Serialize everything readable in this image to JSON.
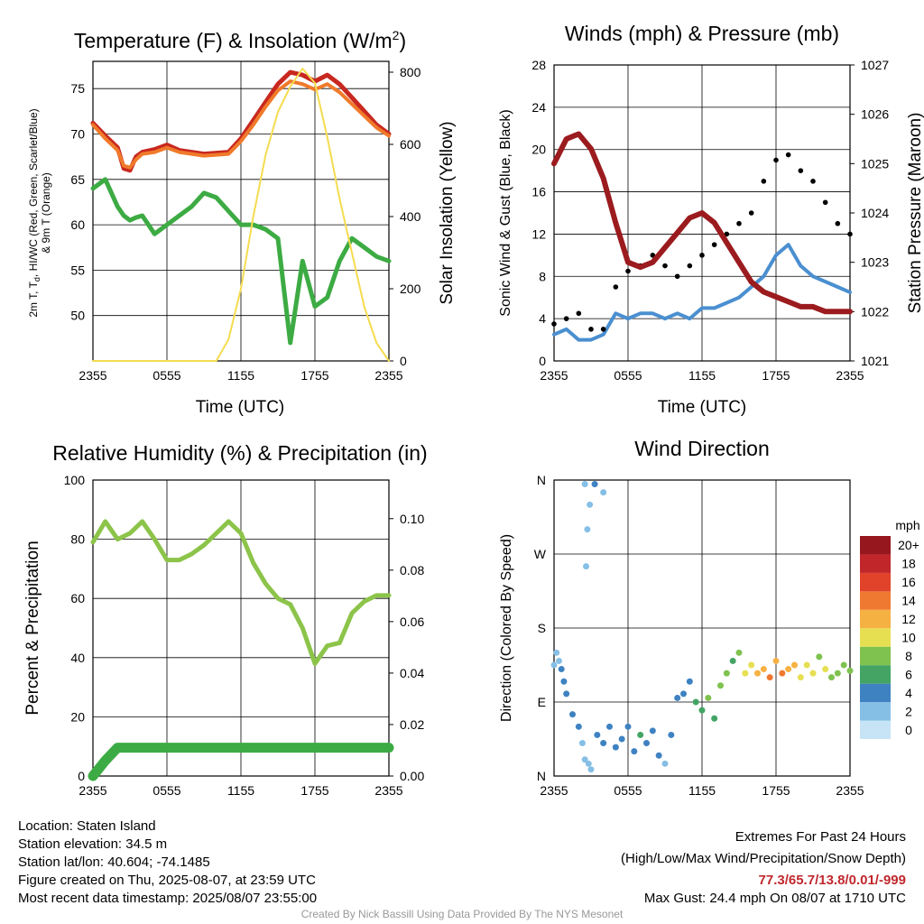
{
  "chart_data": [
    {
      "type": "line",
      "title": "Temperature (F) & Insolation (W/m2)",
      "ylabel": "2m T, Td, HI/WC (Red, Green, Scarlet/Blue) & 9m T (Orange)",
      "y2label": "Solar Insolation (Yellow)",
      "xlabel": "Time (UTC)",
      "x_ticks": [
        "2355",
        "0555",
        "1155",
        "1755",
        "2355"
      ],
      "ylim": [
        45,
        78
      ],
      "y_ticks": [
        50,
        55,
        60,
        65,
        70,
        75
      ],
      "y2lim": [
        0,
        830
      ],
      "y2_ticks": [
        0,
        200,
        400,
        600,
        800
      ],
      "x_hours": [
        0,
        1,
        2,
        2.5,
        3,
        3.5,
        4,
        5,
        6,
        7,
        8,
        9,
        10,
        11,
        12,
        13,
        14,
        15,
        16,
        17,
        18,
        19,
        20,
        21,
        22,
        23,
        24
      ],
      "series": [
        {
          "name": "2m T",
          "color": "#c8281f",
          "axis": "left",
          "values": [
            71.2,
            69.8,
            68.5,
            66.2,
            66.0,
            67.5,
            68.0,
            68.3,
            68.8,
            68.2,
            68.0,
            67.8,
            67.9,
            68.0,
            69.5,
            71.5,
            73.5,
            75.5,
            76.8,
            76.5,
            75.8,
            76.5,
            75.5,
            74.0,
            72.5,
            71.0,
            70.0
          ]
        },
        {
          "name": "9m T",
          "color": "#f07a2a",
          "axis": "left",
          "values": [
            71.0,
            69.5,
            68.2,
            66.5,
            66.3,
            67.2,
            67.8,
            68.0,
            68.5,
            68.0,
            67.8,
            67.6,
            67.7,
            67.8,
            69.2,
            71.0,
            73.0,
            74.8,
            75.8,
            75.5,
            74.9,
            75.5,
            74.6,
            73.3,
            72.0,
            70.7,
            69.8
          ]
        },
        {
          "name": "2m Td",
          "color": "#3dab43",
          "axis": "left",
          "values": [
            64.0,
            65.0,
            62.0,
            61.0,
            60.5,
            60.8,
            61.0,
            59.0,
            60.0,
            61.0,
            62.0,
            63.5,
            63.0,
            61.5,
            60.0,
            60.0,
            59.5,
            58.5,
            47.0,
            56.0,
            51.0,
            52.0,
            56.0,
            58.5,
            57.5,
            56.5,
            56.0
          ]
        },
        {
          "name": "Solar Insolation",
          "color": "#f5dc50",
          "axis": "right",
          "values": [
            0,
            0,
            0,
            0,
            0,
            0,
            0,
            0,
            0,
            0,
            0,
            0,
            0,
            60,
            200,
            400,
            570,
            690,
            760,
            810,
            770,
            620,
            450,
            300,
            150,
            50,
            0
          ]
        }
      ]
    },
    {
      "type": "line",
      "title": "Winds (mph) & Pressure (mb)",
      "ylabel": "Sonic Wind & Gust (Blue, Black)",
      "y2label": "Station Pressure (Maroon)",
      "xlabel": "Time (UTC)",
      "x_ticks": [
        "2355",
        "0555",
        "1155",
        "1755",
        "2355"
      ],
      "ylim": [
        0,
        28
      ],
      "y_ticks": [
        0,
        4,
        8,
        12,
        16,
        20,
        24,
        28
      ],
      "y2lim": [
        1021,
        1027
      ],
      "y2_ticks": [
        1021,
        1022,
        1023,
        1024,
        1025,
        1026,
        1027
      ],
      "x_hours": [
        0,
        1,
        2,
        3,
        4,
        5,
        6,
        7,
        8,
        9,
        10,
        11,
        12,
        13,
        14,
        15,
        16,
        17,
        18,
        19,
        20,
        21,
        22,
        23,
        24
      ],
      "series": [
        {
          "name": "Sonic Wind",
          "color": "#4a8fd0",
          "axis": "left",
          "values": [
            2.5,
            3.0,
            2.0,
            2.0,
            2.5,
            4.5,
            4.0,
            4.5,
            4.5,
            4.0,
            4.5,
            4.0,
            5.0,
            5.0,
            5.5,
            6.0,
            7.0,
            8.0,
            10.0,
            11.0,
            9.0,
            8.0,
            7.5,
            7.0,
            6.5
          ]
        },
        {
          "name": "Gust",
          "color": "#000000",
          "axis": "left",
          "values": [
            3.5,
            4.0,
            4.5,
            3.0,
            3.0,
            7.0,
            8.5,
            9.0,
            10.0,
            9.0,
            8.0,
            9.0,
            10.0,
            11.0,
            12.0,
            13.0,
            14.0,
            17.0,
            19.0,
            19.5,
            18.0,
            17.0,
            15.0,
            13.0,
            12.0
          ]
        },
        {
          "name": "Station Pressure",
          "color": "#9b1b1e",
          "axis": "right",
          "values": [
            1025.0,
            1025.5,
            1025.6,
            1025.3,
            1024.7,
            1023.8,
            1023.0,
            1022.9,
            1023.0,
            1023.3,
            1023.6,
            1023.9,
            1024.0,
            1023.8,
            1023.4,
            1023.0,
            1022.6,
            1022.4,
            1022.3,
            1022.2,
            1022.1,
            1022.1,
            1022.0,
            1022.0,
            1022.0
          ]
        }
      ]
    },
    {
      "type": "line",
      "title": "Relative Humidity (%) & Precipitation (in)",
      "ylabel": "Percent & Precipitation",
      "x_ticks": [
        "2355",
        "0555",
        "1155",
        "1755",
        "2355"
      ],
      "ylim": [
        0,
        100
      ],
      "y_ticks": [
        0,
        20,
        40,
        60,
        80,
        100
      ],
      "y2lim": [
        0,
        0.115
      ],
      "y2_ticks": [
        "0.00",
        "0.02",
        "0.04",
        "0.06",
        "0.08",
        "0.10"
      ],
      "x_hours": [
        0,
        1,
        2,
        3,
        4,
        5,
        6,
        7,
        8,
        9,
        10,
        11,
        12,
        13,
        14,
        15,
        16,
        17,
        18,
        19,
        20,
        21,
        22,
        23,
        24
      ],
      "series": [
        {
          "name": "Relative Humidity",
          "color": "#8cc44a",
          "axis": "left",
          "values": [
            79,
            86,
            80,
            82,
            86,
            80,
            73,
            73,
            75,
            78,
            82,
            86,
            82,
            72,
            65,
            60,
            58,
            50,
            38,
            44,
            45,
            55,
            59,
            61,
            61
          ]
        },
        {
          "name": "Precipitation",
          "color": "#3dab43",
          "axis": "right",
          "values": [
            0,
            0.006,
            0.011,
            0.011,
            0.011,
            0.011,
            0.011,
            0.011,
            0.011,
            0.011,
            0.011,
            0.011,
            0.011,
            0.011,
            0.011,
            0.011,
            0.011,
            0.011,
            0.011,
            0.011,
            0.011,
            0.011,
            0.011,
            0.011,
            0.011
          ]
        }
      ]
    },
    {
      "type": "scatter",
      "title": "Wind Direction",
      "ylabel": "Direction (Colored By Speed)",
      "x_ticks": [
        "2355",
        "0555",
        "1155",
        "1755",
        "2355"
      ],
      "y_ticks": [
        "N",
        "E",
        "S",
        "W",
        "N"
      ],
      "ylim": [
        0,
        360
      ],
      "legend_title": "mph",
      "legend_labels": [
        "0",
        "2",
        "4",
        "6",
        "8",
        "10",
        "12",
        "14",
        "16",
        "18",
        "20+"
      ],
      "legend_colors": [
        "#c6e4f5",
        "#86bfe6",
        "#3f82c2",
        "#43a464",
        "#7fc24f",
        "#e6df52",
        "#f6b143",
        "#ef7930",
        "#e0432a",
        "#c0262a",
        "#96171e"
      ],
      "points": [
        [
          0.0,
          135,
          2
        ],
        [
          0.2,
          150,
          2
        ],
        [
          0.4,
          140,
          2
        ],
        [
          0.6,
          130,
          3
        ],
        [
          0.8,
          115,
          4
        ],
        [
          1.0,
          100,
          3
        ],
        [
          1.5,
          75,
          3
        ],
        [
          2.0,
          60,
          4
        ],
        [
          2.3,
          40,
          2
        ],
        [
          2.5,
          20,
          1
        ],
        [
          2.8,
          15,
          1
        ],
        [
          3.0,
          8,
          2
        ],
        [
          2.6,
          255,
          2
        ],
        [
          2.7,
          300,
          2
        ],
        [
          2.9,
          330,
          1
        ],
        [
          3.3,
          355,
          4
        ],
        [
          4.0,
          345,
          2
        ],
        [
          2.5,
          355,
          1
        ],
        [
          3.5,
          50,
          3
        ],
        [
          4.0,
          40,
          4
        ],
        [
          4.5,
          60,
          4
        ],
        [
          5.0,
          35,
          3
        ],
        [
          5.5,
          45,
          4
        ],
        [
          6.0,
          60,
          4
        ],
        [
          6.5,
          30,
          4
        ],
        [
          7.0,
          50,
          5
        ],
        [
          7.5,
          40,
          4
        ],
        [
          8.0,
          55,
          4
        ],
        [
          8.5,
          25,
          3
        ],
        [
          9.0,
          15,
          2
        ],
        [
          9.5,
          50,
          4
        ],
        [
          10.0,
          95,
          3
        ],
        [
          10.5,
          100,
          4
        ],
        [
          11.0,
          115,
          3
        ],
        [
          11.5,
          90,
          5
        ],
        [
          12.0,
          80,
          6
        ],
        [
          12.5,
          95,
          7
        ],
        [
          13.0,
          70,
          6
        ],
        [
          13.5,
          110,
          7
        ],
        [
          14.0,
          125,
          8
        ],
        [
          14.5,
          140,
          6
        ],
        [
          15.0,
          150,
          8
        ],
        [
          15.5,
          125,
          9
        ],
        [
          16.0,
          135,
          10
        ],
        [
          16.5,
          125,
          12
        ],
        [
          17.0,
          130,
          11
        ],
        [
          17.5,
          120,
          13
        ],
        [
          18.0,
          140,
          12
        ],
        [
          18.5,
          125,
          14
        ],
        [
          19.0,
          130,
          12
        ],
        [
          19.5,
          135,
          11
        ],
        [
          20.0,
          120,
          10
        ],
        [
          20.5,
          135,
          9
        ],
        [
          21.0,
          125,
          10
        ],
        [
          21.5,
          145,
          8
        ],
        [
          22.0,
          130,
          9
        ],
        [
          22.5,
          120,
          7
        ],
        [
          23.0,
          125,
          8
        ],
        [
          23.5,
          135,
          8
        ],
        [
          24.0,
          128,
          7
        ]
      ]
    }
  ],
  "location": {
    "name": "Location: Staten Island",
    "elevation": "Station elevation: 34.5 m",
    "latlon": "Station lat/lon: 40.604; -74.1485",
    "created": "Figure created on Thu, 2025-08-07, at 23:59 UTC",
    "recent": "Most recent data timestamp: 2025/08/07 23:55:00"
  },
  "extremes": {
    "title": "Extremes For Past 24 Hours",
    "subtitle": "(High/Low/Max Wind/Precipitation/Snow Depth)",
    "values": "77.3/65.7/13.8/0.01/-999",
    "gust": "Max Gust: 24.4 mph On 08/07 at 1710 UTC"
  },
  "credit": "Created By Nick Bassill Using Data Provided By The NYS Mesonet",
  "colors": {
    "highlight": "#c0282d"
  }
}
